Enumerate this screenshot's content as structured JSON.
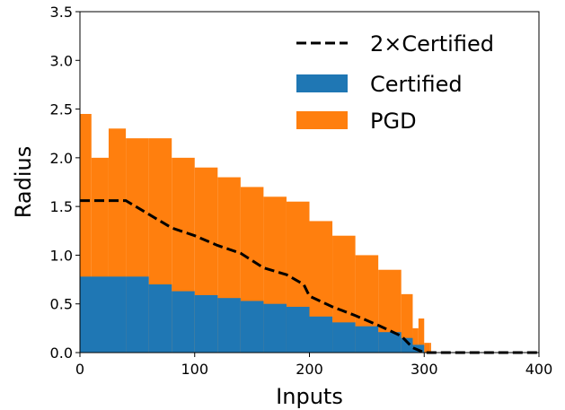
{
  "chart_data": {
    "type": "bar",
    "xlabel": "Inputs",
    "ylabel": "Radius",
    "xlim": [
      0,
      400
    ],
    "ylim": [
      0,
      3.5
    ],
    "xticks": [
      0,
      100,
      200,
      300,
      400
    ],
    "xtick_labels": [
      "0",
      "100",
      "200",
      "300",
      "400"
    ],
    "yticks": [
      0.0,
      0.5,
      1.0,
      1.5,
      2.0,
      2.5,
      3.0,
      3.5
    ],
    "ytick_labels": [
      "0.0",
      "0.5",
      "1.0",
      "1.5",
      "2.0",
      "2.5",
      "3.0",
      "3.5"
    ],
    "grid": false,
    "legend_position": "top-right",
    "colors": {
      "certified": "#1f77b4",
      "pgd": "#ff7f0e",
      "twice_certified": "#000000"
    },
    "series": [
      {
        "name": "Certified",
        "kind": "bar",
        "x": [
          0,
          40,
          60,
          80,
          100,
          120,
          140,
          160,
          180,
          200,
          220,
          240,
          260,
          280,
          290,
          300,
          305
        ],
        "values": [
          0.78,
          0.78,
          0.7,
          0.63,
          0.59,
          0.56,
          0.53,
          0.5,
          0.47,
          0.37,
          0.31,
          0.27,
          0.21,
          0.15,
          0.08,
          0.0,
          0.0
        ]
      },
      {
        "name": "PGD",
        "kind": "bar",
        "x": [
          0,
          10,
          25,
          40,
          60,
          80,
          100,
          120,
          140,
          160,
          180,
          200,
          220,
          240,
          260,
          280,
          290,
          295,
          300,
          305
        ],
        "values": [
          2.45,
          2.0,
          2.3,
          2.2,
          2.2,
          2.0,
          1.9,
          1.8,
          1.7,
          1.6,
          1.55,
          1.35,
          1.2,
          1.0,
          0.85,
          0.6,
          0.25,
          0.35,
          0.1,
          0.1
        ]
      },
      {
        "name": "2×Certified",
        "kind": "line",
        "x": [
          0,
          40,
          60,
          80,
          100,
          120,
          140,
          160,
          180,
          195,
          200,
          220,
          240,
          260,
          280,
          290,
          300,
          400
        ],
        "values": [
          1.56,
          1.56,
          1.42,
          1.28,
          1.2,
          1.1,
          1.02,
          0.87,
          0.8,
          0.7,
          0.58,
          0.47,
          0.38,
          0.28,
          0.17,
          0.05,
          0.0,
          0.0
        ]
      }
    ]
  }
}
